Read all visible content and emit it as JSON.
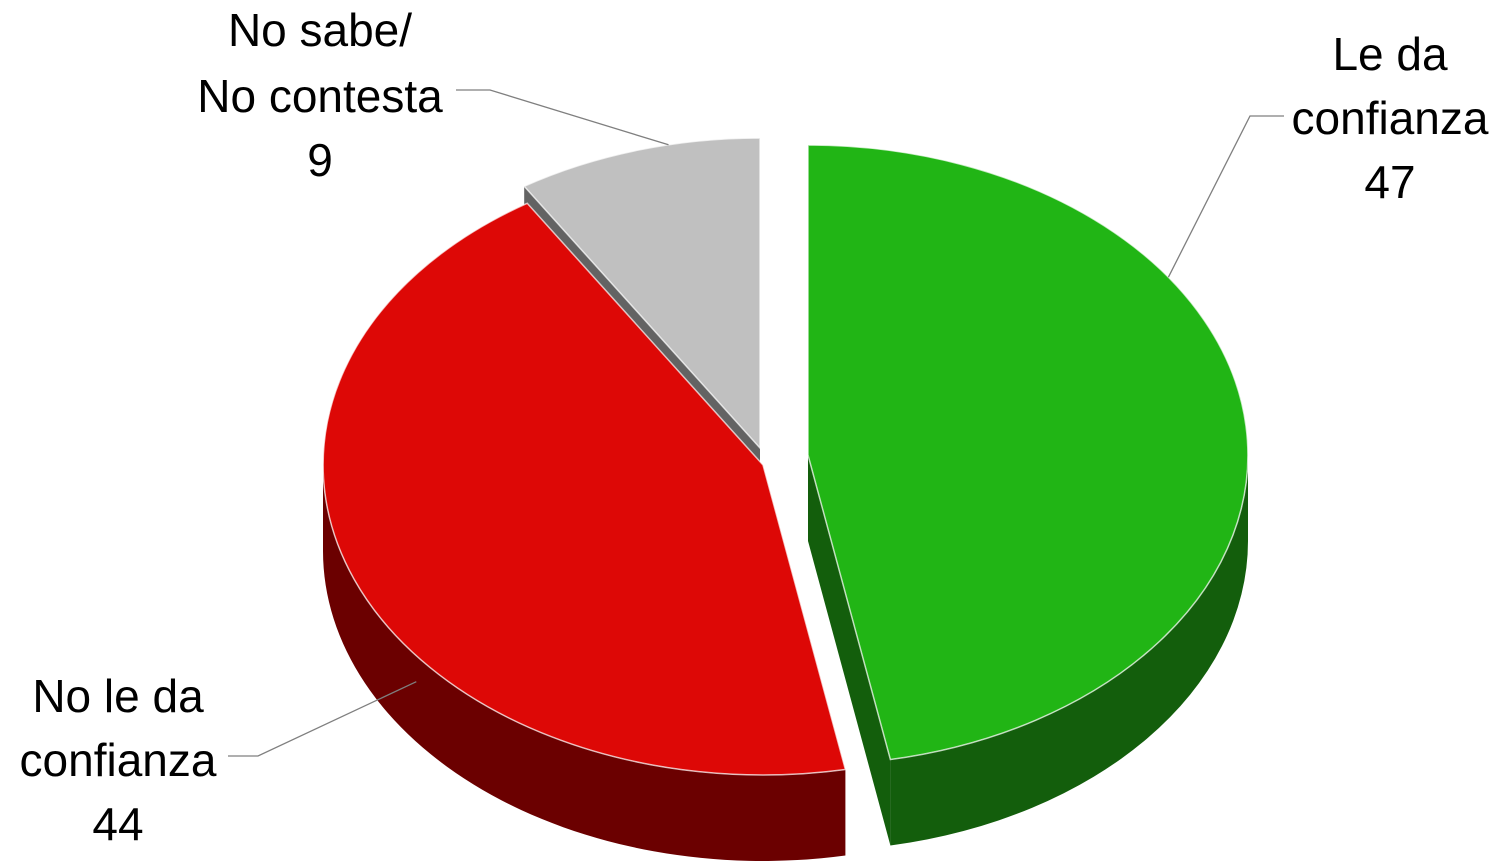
{
  "chart_data": {
    "type": "pie",
    "title": "",
    "slices": [
      {
        "label_lines": [
          "Le da",
          "confianza"
        ],
        "value": 47,
        "color": "#21b515",
        "side_color": "#135e0c"
      },
      {
        "label_lines": [
          "No le da",
          "confianza"
        ],
        "value": 44,
        "color": "#dd0806",
        "side_color": "#6b0000"
      },
      {
        "label_lines": [
          "No sabe/",
          "No contesta"
        ],
        "value": 9,
        "color": "#c0c0c0",
        "side_color": "#636363"
      }
    ]
  }
}
